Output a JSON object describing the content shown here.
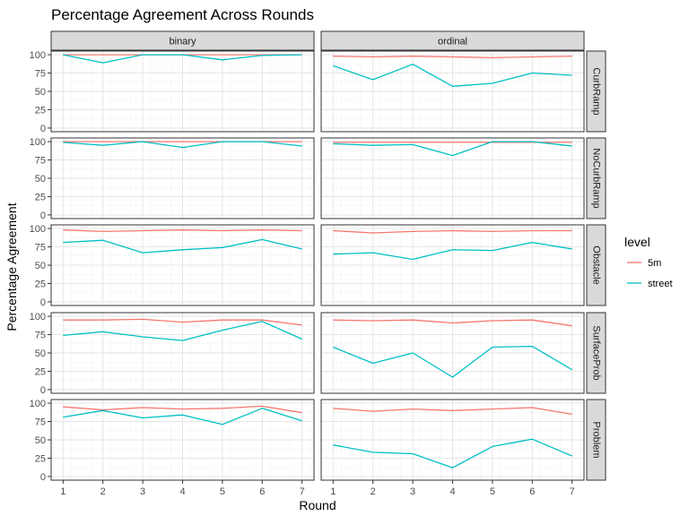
{
  "chart_data": {
    "type": "line",
    "title": "Percentage Agreement Across Rounds",
    "xlabel": "Round",
    "ylabel": "Percentage Agreement",
    "x": [
      1,
      2,
      3,
      4,
      5,
      6,
      7
    ],
    "xlim": [
      0.7,
      7.3
    ],
    "ylim": [
      0,
      100
    ],
    "yticks": [
      0,
      25,
      50,
      75,
      100
    ],
    "grid": true,
    "legend": {
      "title": "level",
      "position": "right",
      "entries": [
        {
          "name": "5m",
          "color": "#F8766D"
        },
        {
          "name": "street",
          "color": "#00BFC4"
        }
      ]
    },
    "columns": [
      "binary",
      "ordinal"
    ],
    "rows": [
      "CurbRamp",
      "NoCurbRamp",
      "Obstacle",
      "SurfaceProb",
      "Problem"
    ],
    "panels": [
      {
        "row": "CurbRamp",
        "col": "binary",
        "series": [
          {
            "name": "5m",
            "values": [
              100,
              100,
              100,
              100,
              100,
              100,
              100
            ]
          },
          {
            "name": "street",
            "values": [
              100,
              89,
              100,
              100,
              93,
              99,
              100
            ]
          }
        ]
      },
      {
        "row": "CurbRamp",
        "col": "ordinal",
        "series": [
          {
            "name": "5m",
            "values": [
              98,
              97,
              98,
              97,
              96,
              97,
              98
            ]
          },
          {
            "name": "street",
            "values": [
              85,
              66,
              87,
              57,
              61,
              75,
              72
            ]
          }
        ]
      },
      {
        "row": "NoCurbRamp",
        "col": "binary",
        "series": [
          {
            "name": "5m",
            "values": [
              100,
              100,
              100,
              100,
              100,
              100,
              100
            ]
          },
          {
            "name": "street",
            "values": [
              99,
              95,
              100,
              92,
              100,
              100,
              94
            ]
          }
        ]
      },
      {
        "row": "NoCurbRamp",
        "col": "ordinal",
        "series": [
          {
            "name": "5m",
            "values": [
              99,
              99,
              99,
              99,
              99,
              99,
              99
            ]
          },
          {
            "name": "street",
            "values": [
              97,
              95,
              96,
              81,
              100,
              100,
              94
            ]
          }
        ]
      },
      {
        "row": "Obstacle",
        "col": "binary",
        "series": [
          {
            "name": "5m",
            "values": [
              98,
              96,
              97,
              98,
              97,
              98,
              97
            ]
          },
          {
            "name": "street",
            "values": [
              81,
              84,
              67,
              71,
              74,
              85,
              72
            ]
          }
        ]
      },
      {
        "row": "Obstacle",
        "col": "ordinal",
        "series": [
          {
            "name": "5m",
            "values": [
              97,
              94,
              96,
              97,
              96,
              97,
              97
            ]
          },
          {
            "name": "street",
            "values": [
              65,
              67,
              58,
              71,
              70,
              81,
              72
            ]
          }
        ]
      },
      {
        "row": "SurfaceProb",
        "col": "binary",
        "series": [
          {
            "name": "5m",
            "values": [
              95,
              95,
              96,
              92,
              95,
              95,
              88
            ]
          },
          {
            "name": "street",
            "values": [
              74,
              79,
              72,
              67,
              81,
              93,
              69
            ]
          }
        ]
      },
      {
        "row": "SurfaceProb",
        "col": "ordinal",
        "series": [
          {
            "name": "5m",
            "values": [
              95,
              94,
              95,
              91,
              94,
              95,
              87
            ]
          },
          {
            "name": "street",
            "values": [
              58,
              36,
              50,
              17,
              58,
              59,
              27
            ]
          }
        ]
      },
      {
        "row": "Problem",
        "col": "binary",
        "series": [
          {
            "name": "5m",
            "values": [
              95,
              91,
              94,
              92,
              93,
              96,
              87
            ]
          },
          {
            "name": "street",
            "values": [
              81,
              90,
              80,
              84,
              71,
              93,
              76
            ]
          }
        ]
      },
      {
        "row": "Problem",
        "col": "ordinal",
        "series": [
          {
            "name": "5m",
            "values": [
              93,
              89,
              92,
              90,
              92,
              94,
              85
            ]
          },
          {
            "name": "street",
            "values": [
              43,
              33,
              31,
              12,
              41,
              51,
              28
            ]
          }
        ]
      }
    ]
  }
}
